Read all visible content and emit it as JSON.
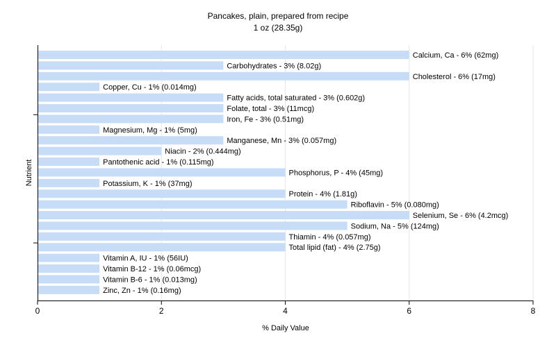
{
  "chart_data": {
    "type": "bar",
    "orientation": "horizontal",
    "title": "Pancakes, plain, prepared from recipe",
    "subtitle": "1 oz (28.35g)",
    "xlabel": "% Daily Value",
    "ylabel": "Nutrient",
    "xlim": [
      0,
      8
    ],
    "xticks": [
      "0",
      "2",
      "4",
      "6",
      "8"
    ],
    "grid": true,
    "bar_color": "#c6dcf7",
    "gridline_color": "#e6e6e6",
    "categories": [
      "Calcium, Ca",
      "Carbohydrates",
      "Cholesterol",
      "Copper, Cu",
      "Fatty acids, total saturated",
      "Folate, total",
      "Iron, Fe",
      "Magnesium, Mg",
      "Manganese, Mn",
      "Niacin",
      "Pantothenic acid",
      "Phosphorus, P",
      "Potassium, K",
      "Protein",
      "Riboflavin",
      "Selenium, Se",
      "Sodium, Na",
      "Thiamin",
      "Total lipid (fat)",
      "Vitamin A, IU",
      "Vitamin B-12",
      "Vitamin B-6",
      "Zinc, Zn"
    ],
    "values": [
      6,
      3,
      6,
      1,
      3,
      3,
      3,
      1,
      3,
      2,
      1,
      4,
      1,
      4,
      5,
      6,
      5,
      4,
      4,
      1,
      1,
      1,
      1
    ],
    "labels": [
      "Calcium, Ca - 6% (62mg)",
      "Carbohydrates - 3% (8.02g)",
      "Cholesterol - 6% (17mg)",
      "Copper, Cu - 1% (0.014mg)",
      "Fatty acids, total saturated - 3% (0.602g)",
      "Folate, total - 3% (11mcg)",
      "Iron, Fe - 3% (0.51mg)",
      "Magnesium, Mg - 1% (5mg)",
      "Manganese, Mn - 3% (0.057mg)",
      "Niacin - 2% (0.444mg)",
      "Pantothenic acid - 1% (0.115mg)",
      "Phosphorus, P - 4% (45mg)",
      "Potassium, K - 1% (37mg)",
      "Protein - 4% (1.81g)",
      "Riboflavin - 5% (0.080mg)",
      "Selenium, Se - 6% (4.2mcg)",
      "Sodium, Na - 5% (124mg)",
      "Thiamin - 4% (0.057mg)",
      "Total lipid (fat) - 4% (2.75g)",
      "Vitamin A, IU - 1% (56IU)",
      "Vitamin B-12 - 1% (0.06mcg)",
      "Vitamin B-6 - 1% (0.013mg)",
      "Zinc, Zn - 1% (0.16mg)"
    ]
  }
}
